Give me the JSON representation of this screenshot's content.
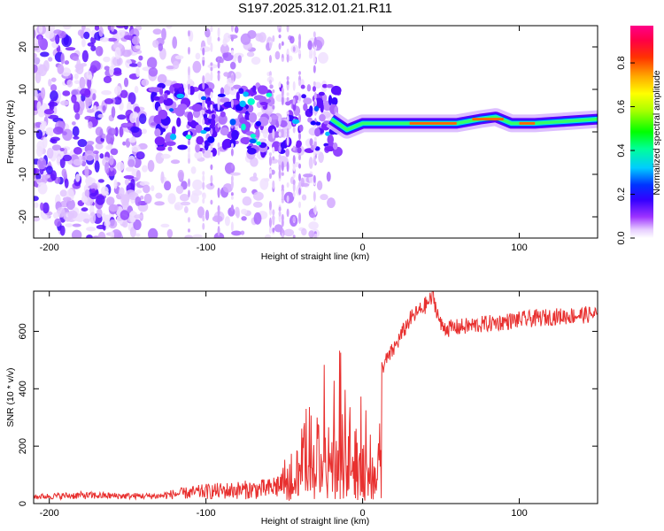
{
  "title": "S197.2025.312.01.21.R11",
  "chart_data": [
    {
      "type": "heatmap",
      "xlabel": "Height of straight line (km)",
      "ylabel": "Frequency (Hz)",
      "xlim": [
        -210,
        150
      ],
      "ylim": [
        -25,
        25
      ],
      "x_ticks": [
        -200,
        -100,
        0,
        100
      ],
      "y_ticks": [
        -20,
        -10,
        0,
        10,
        20
      ],
      "colorbar": {
        "label": "Normalized spectral amplitude",
        "range": [
          0,
          0.97
        ],
        "ticks": [
          0.0,
          0.2,
          0.4,
          0.6,
          0.8
        ]
      },
      "ridge": {
        "description_points_x": [
          -135,
          -120,
          -100,
          -80,
          -60,
          -40,
          -20,
          -10,
          0,
          10,
          30,
          60,
          75,
          85,
          95,
          110,
          150
        ],
        "description_points_y": [
          4,
          5,
          3,
          2,
          5,
          4,
          3,
          0.5,
          2,
          2,
          2,
          2,
          3,
          3.5,
          2,
          2,
          3
        ]
      }
    },
    {
      "type": "line",
      "xlabel": "Height of straight line (km)",
      "ylabel": "SNR (10 * v/v)",
      "xlim": [
        -210,
        150
      ],
      "ylim": [
        0,
        740
      ],
      "x_ticks": [
        -200,
        -100,
        0,
        100
      ],
      "y_ticks": [
        0,
        200,
        400,
        600
      ],
      "color": "#e8302f",
      "series": {
        "x": [
          -210,
          -180,
          -150,
          -130,
          -120,
          -100,
          -80,
          -60,
          -45,
          -40,
          -35,
          -30,
          -25,
          -20,
          -15,
          -10,
          -5,
          0,
          5,
          10,
          12,
          20,
          30,
          40,
          45,
          50,
          55,
          70,
          100,
          120,
          150
        ],
        "y": [
          20,
          30,
          25,
          25,
          40,
          60,
          70,
          80,
          150,
          220,
          300,
          220,
          380,
          300,
          420,
          360,
          200,
          460,
          320,
          380,
          470,
          540,
          640,
          690,
          720,
          620,
          610,
          620,
          640,
          650,
          660
        ]
      }
    }
  ]
}
